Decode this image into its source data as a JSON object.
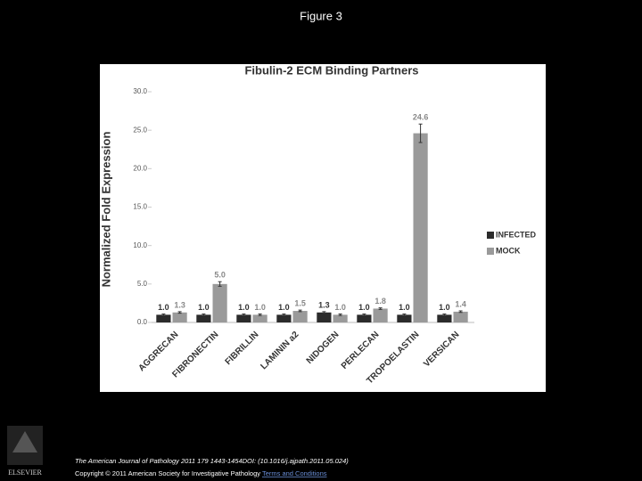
{
  "page": {
    "title": "Figure 3",
    "citation": "The American Journal of Pathology 2011 179 1443-1454DOI: (10.1016/j.ajpath.2011.05.024)",
    "copyright": "Copyright © 2011 American Society for Investigative Pathology",
    "link": "Terms and Conditions",
    "logo": "ELSEVIER"
  },
  "chart_data": {
    "type": "bar",
    "title": "Fibulin-2 ECM Binding Partners",
    "y_label": "Normalized Fold Expression",
    "categories": [
      "AGGRECAN",
      "FIBRONECTIN",
      "FIBRILLIN",
      "LAMININ a2",
      "NIDOGEN",
      "PERLECAN",
      "TROPOELASTIN",
      "VERSICAN"
    ],
    "series": [
      {
        "name": "INFECTED",
        "color": "#2b2b2b",
        "values": [
          1.0,
          1.0,
          1.0,
          1.0,
          1.3,
          1.0,
          1.0,
          1.0
        ],
        "errors": [
          0.1,
          0.1,
          0.1,
          0.1,
          0.1,
          0.1,
          0.1,
          0.1
        ],
        "value_labels": [
          "1.0",
          "1.0",
          "1.0",
          "1.0",
          "1.3",
          "1.0",
          "1.0",
          "1.0"
        ]
      },
      {
        "name": "MOCK",
        "color": "#9a9a9a",
        "values": [
          1.3,
          5.0,
          1.0,
          1.5,
          1.0,
          1.8,
          24.6,
          1.4
        ],
        "errors": [
          0.1,
          0.3,
          0.1,
          0.1,
          0.1,
          0.1,
          1.2,
          0.1
        ],
        "value_labels": [
          "1.3",
          "5.0",
          "1.0",
          "1.5",
          "1.0",
          "1.8",
          "24.6",
          "1.4"
        ]
      }
    ],
    "ylim": [
      0,
      30
    ],
    "yticks": [
      {
        "value": 0,
        "label": "0.0"
      },
      {
        "value": 5,
        "label": "5.0"
      },
      {
        "value": 10,
        "label": "10.0"
      },
      {
        "value": 15,
        "label": "15.0"
      },
      {
        "value": 20,
        "label": "20.0"
      },
      {
        "value": 25,
        "label": "25.0"
      },
      {
        "value": 30,
        "label": "30.0"
      }
    ],
    "legend": "right"
  }
}
